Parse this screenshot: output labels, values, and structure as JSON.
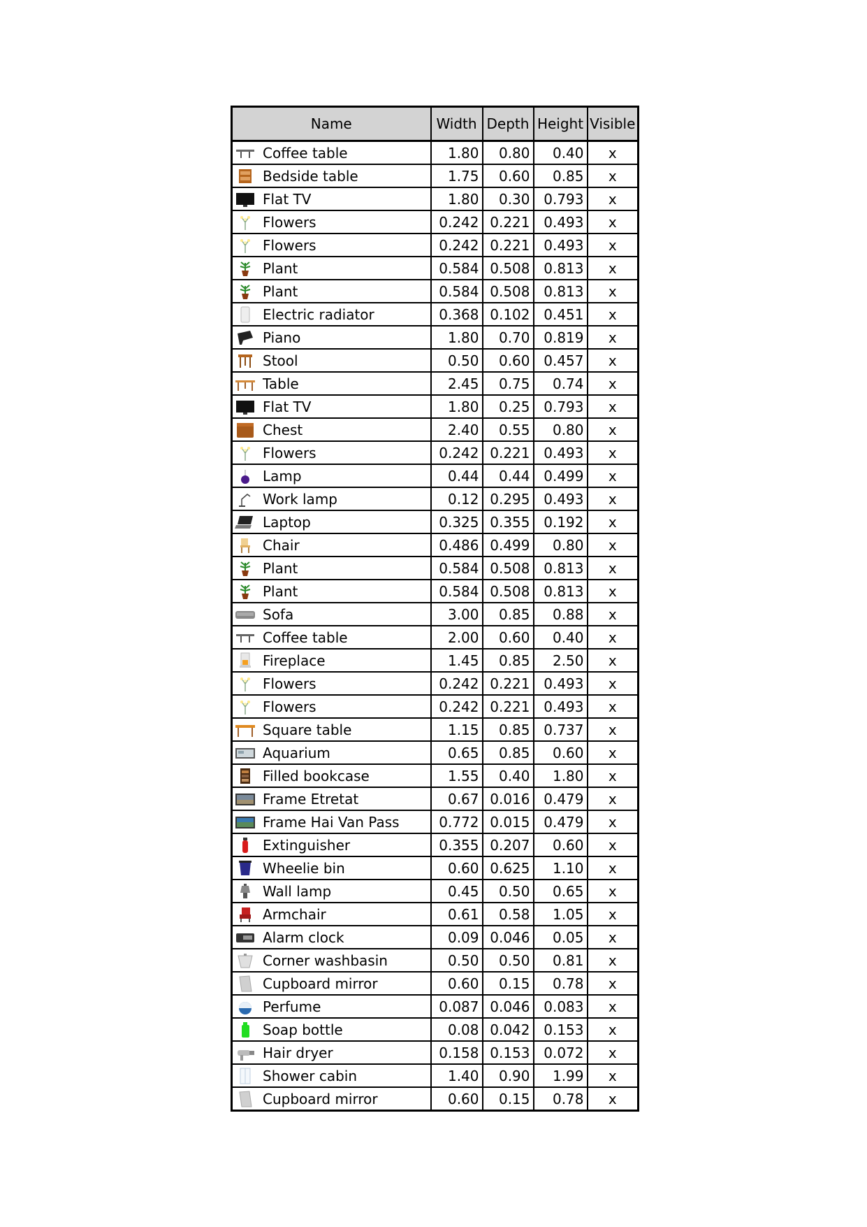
{
  "table": {
    "headers": {
      "name": "Name",
      "width": "Width",
      "depth": "Depth",
      "height": "Height",
      "visible": "Visible"
    },
    "rows": [
      {
        "icon": "coffee-table-icon",
        "name": "Coffee table",
        "width": "1.80",
        "depth": "0.80",
        "height": "0.40",
        "visible": "x"
      },
      {
        "icon": "bedside-table-icon",
        "name": "Bedside table",
        "width": "1.75",
        "depth": "0.60",
        "height": "0.85",
        "visible": "x"
      },
      {
        "icon": "flat-tv-icon",
        "name": "Flat TV",
        "width": "1.80",
        "depth": "0.30",
        "height": "0.793",
        "visible": "x"
      },
      {
        "icon": "flowers-icon",
        "name": "Flowers",
        "width": "0.242",
        "depth": "0.221",
        "height": "0.493",
        "visible": "x"
      },
      {
        "icon": "flowers-icon",
        "name": "Flowers",
        "width": "0.242",
        "depth": "0.221",
        "height": "0.493",
        "visible": "x"
      },
      {
        "icon": "plant-icon",
        "name": "Plant",
        "width": "0.584",
        "depth": "0.508",
        "height": "0.813",
        "visible": "x"
      },
      {
        "icon": "plant-icon",
        "name": "Plant",
        "width": "0.584",
        "depth": "0.508",
        "height": "0.813",
        "visible": "x"
      },
      {
        "icon": "electric-radiator-icon",
        "name": "Electric radiator",
        "width": "0.368",
        "depth": "0.102",
        "height": "0.451",
        "visible": "x"
      },
      {
        "icon": "piano-icon",
        "name": "Piano",
        "width": "1.80",
        "depth": "0.70",
        "height": "0.819",
        "visible": "x"
      },
      {
        "icon": "stool-icon",
        "name": "Stool",
        "width": "0.50",
        "depth": "0.60",
        "height": "0.457",
        "visible": "x"
      },
      {
        "icon": "table-icon",
        "name": "Table",
        "width": "2.45",
        "depth": "0.75",
        "height": "0.74",
        "visible": "x"
      },
      {
        "icon": "flat-tv-icon",
        "name": "Flat TV",
        "width": "1.80",
        "depth": "0.25",
        "height": "0.793",
        "visible": "x"
      },
      {
        "icon": "chest-icon",
        "name": "Chest",
        "width": "2.40",
        "depth": "0.55",
        "height": "0.80",
        "visible": "x"
      },
      {
        "icon": "flowers-icon",
        "name": "Flowers",
        "width": "0.242",
        "depth": "0.221",
        "height": "0.493",
        "visible": "x"
      },
      {
        "icon": "lamp-icon",
        "name": "Lamp",
        "width": "0.44",
        "depth": "0.44",
        "height": "0.499",
        "visible": "x"
      },
      {
        "icon": "work-lamp-icon",
        "name": "Work lamp",
        "width": "0.12",
        "depth": "0.295",
        "height": "0.493",
        "visible": "x"
      },
      {
        "icon": "laptop-icon",
        "name": "Laptop",
        "width": "0.325",
        "depth": "0.355",
        "height": "0.192",
        "visible": "x"
      },
      {
        "icon": "chair-icon",
        "name": "Chair",
        "width": "0.486",
        "depth": "0.499",
        "height": "0.80",
        "visible": "x"
      },
      {
        "icon": "plant-icon",
        "name": "Plant",
        "width": "0.584",
        "depth": "0.508",
        "height": "0.813",
        "visible": "x"
      },
      {
        "icon": "plant-icon",
        "name": "Plant",
        "width": "0.584",
        "depth": "0.508",
        "height": "0.813",
        "visible": "x"
      },
      {
        "icon": "sofa-icon",
        "name": "Sofa",
        "width": "3.00",
        "depth": "0.85",
        "height": "0.88",
        "visible": "x"
      },
      {
        "icon": "coffee-table-icon",
        "name": "Coffee table",
        "width": "2.00",
        "depth": "0.60",
        "height": "0.40",
        "visible": "x"
      },
      {
        "icon": "fireplace-icon",
        "name": "Fireplace",
        "width": "1.45",
        "depth": "0.85",
        "height": "2.50",
        "visible": "x"
      },
      {
        "icon": "flowers-icon",
        "name": "Flowers",
        "width": "0.242",
        "depth": "0.221",
        "height": "0.493",
        "visible": "x"
      },
      {
        "icon": "flowers-icon",
        "name": "Flowers",
        "width": "0.242",
        "depth": "0.221",
        "height": "0.493",
        "visible": "x"
      },
      {
        "icon": "square-table-icon",
        "name": "Square table",
        "width": "1.15",
        "depth": "0.85",
        "height": "0.737",
        "visible": "x"
      },
      {
        "icon": "aquarium-icon",
        "name": "Aquarium",
        "width": "0.65",
        "depth": "0.85",
        "height": "0.60",
        "visible": "x"
      },
      {
        "icon": "filled-bookcase-icon",
        "name": "Filled bookcase",
        "width": "1.55",
        "depth": "0.40",
        "height": "1.80",
        "visible": "x"
      },
      {
        "icon": "frame-etretat-icon",
        "name": "Frame Etretat",
        "width": "0.67",
        "depth": "0.016",
        "height": "0.479",
        "visible": "x"
      },
      {
        "icon": "frame-hai-van-pass-icon",
        "name": "Frame Hai Van Pass",
        "width": "0.772",
        "depth": "0.015",
        "height": "0.479",
        "visible": "x"
      },
      {
        "icon": "extinguisher-icon",
        "name": "Extinguisher",
        "width": "0.355",
        "depth": "0.207",
        "height": "0.60",
        "visible": "x"
      },
      {
        "icon": "wheelie-bin-icon",
        "name": "Wheelie bin",
        "width": "0.60",
        "depth": "0.625",
        "height": "1.10",
        "visible": "x"
      },
      {
        "icon": "wall-lamp-icon",
        "name": "Wall lamp",
        "width": "0.45",
        "depth": "0.50",
        "height": "0.65",
        "visible": "x"
      },
      {
        "icon": "armchair-icon",
        "name": "Armchair",
        "width": "0.61",
        "depth": "0.58",
        "height": "1.05",
        "visible": "x"
      },
      {
        "icon": "alarm-clock-icon",
        "name": "Alarm clock",
        "width": "0.09",
        "depth": "0.046",
        "height": "0.05",
        "visible": "x"
      },
      {
        "icon": "corner-washbasin-icon",
        "name": "Corner washbasin",
        "width": "0.50",
        "depth": "0.50",
        "height": "0.81",
        "visible": "x"
      },
      {
        "icon": "cupboard-mirror-icon",
        "name": "Cupboard mirror",
        "width": "0.60",
        "depth": "0.15",
        "height": "0.78",
        "visible": "x"
      },
      {
        "icon": "perfume-icon",
        "name": "Perfume",
        "width": "0.087",
        "depth": "0.046",
        "height": "0.083",
        "visible": "x"
      },
      {
        "icon": "soap-bottle-icon",
        "name": "Soap bottle",
        "width": "0.08",
        "depth": "0.042",
        "height": "0.153",
        "visible": "x"
      },
      {
        "icon": "hair-dryer-icon",
        "name": "Hair dryer",
        "width": "0.158",
        "depth": "0.153",
        "height": "0.072",
        "visible": "x"
      },
      {
        "icon": "shower-cabin-icon",
        "name": "Shower cabin",
        "width": "1.40",
        "depth": "0.90",
        "height": "1.99",
        "visible": "x"
      },
      {
        "icon": "cupboard-mirror-icon",
        "name": "Cupboard mirror",
        "width": "0.60",
        "depth": "0.15",
        "height": "0.78",
        "visible": "x"
      }
    ]
  }
}
